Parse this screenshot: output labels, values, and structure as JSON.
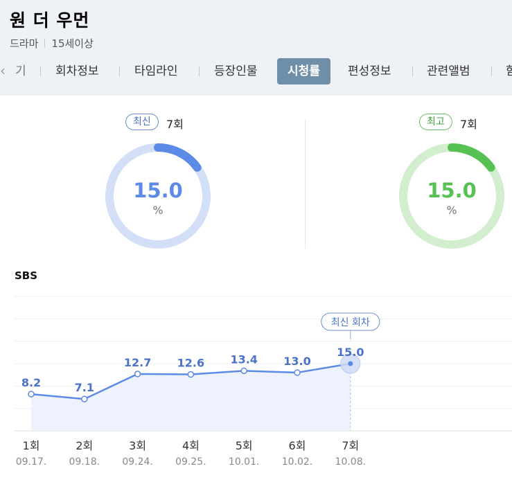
{
  "header": {
    "title": "원 더 우먼",
    "genre": "드라마",
    "rating": "15세이상"
  },
  "tabs": [
    {
      "label": "기"
    },
    {
      "label": "회차정보"
    },
    {
      "label": "타임라인"
    },
    {
      "label": "등장인물"
    },
    {
      "label": "시청률",
      "active": true
    },
    {
      "label": "편성정보"
    },
    {
      "label": "관련앨범"
    },
    {
      "label": "함"
    }
  ],
  "icons": {
    "tab_prev": "chevron-left-icon"
  },
  "summary": {
    "latest": {
      "badge": "최신",
      "episode": "7회",
      "value": "15.0",
      "unit": "%",
      "color": "#5b8be6",
      "track": "#d3dff7"
    },
    "highest": {
      "badge": "최고",
      "episode": "7회",
      "value": "15.0",
      "unit": "%",
      "color": "#58c153",
      "track": "#d2eecf"
    }
  },
  "network": "SBS",
  "latest_callout": "최신 회차",
  "chart_data": {
    "type": "line",
    "categories": [
      "1회",
      "2회",
      "3회",
      "4회",
      "5회",
      "6회",
      "7회"
    ],
    "dates": [
      "09.17.",
      "09.18.",
      "09.24.",
      "09.25.",
      "10.01.",
      "10.02.",
      "10.08."
    ],
    "series": [
      {
        "values": [
          8.2,
          7.1,
          12.7,
          12.6,
          13.4,
          13.0,
          15.0
        ]
      }
    ],
    "labels": [
      "8.2",
      "7.1",
      "12.7",
      "12.6",
      "13.4",
      "13.0",
      "15.0"
    ],
    "highlight_index": 6,
    "ylim": [
      0,
      30
    ],
    "grid": true,
    "line_color": "#5b8be6",
    "fill_color": "#edf2fc"
  }
}
